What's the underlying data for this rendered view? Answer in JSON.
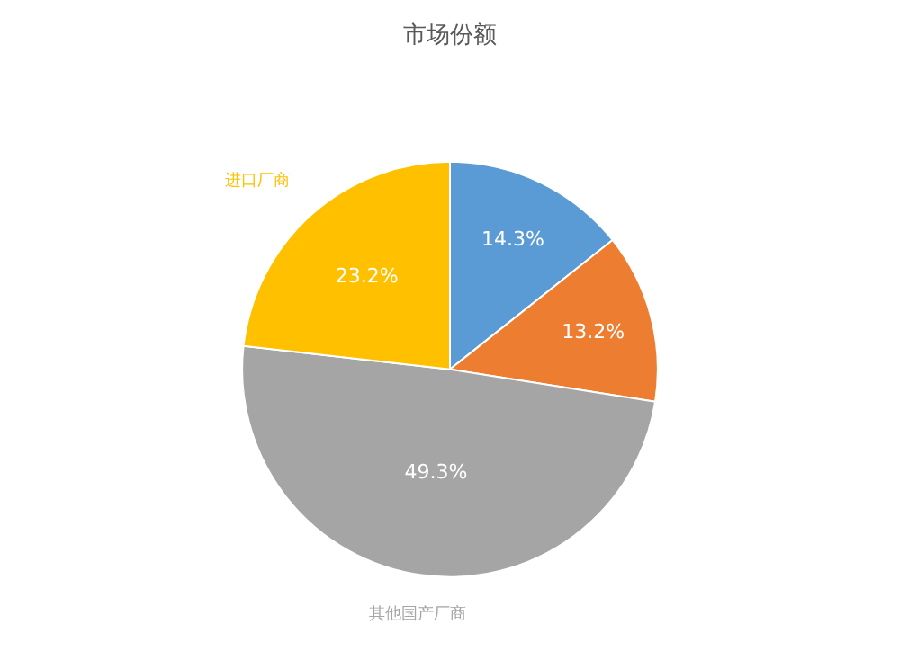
{
  "chart_data": {
    "type": "pie",
    "title": "市场份额",
    "categories": [
      null,
      null,
      "其他国产厂商",
      "进口厂商"
    ],
    "values": [
      14.3,
      13.2,
      49.3,
      23.2
    ],
    "colors": [
      "#5b9bd5",
      "#ed7d31",
      "#a5a5a5",
      "#ffc000"
    ],
    "value_labels": [
      "14.3%",
      "13.2%",
      "49.3%",
      "23.2%"
    ],
    "legend": false
  }
}
